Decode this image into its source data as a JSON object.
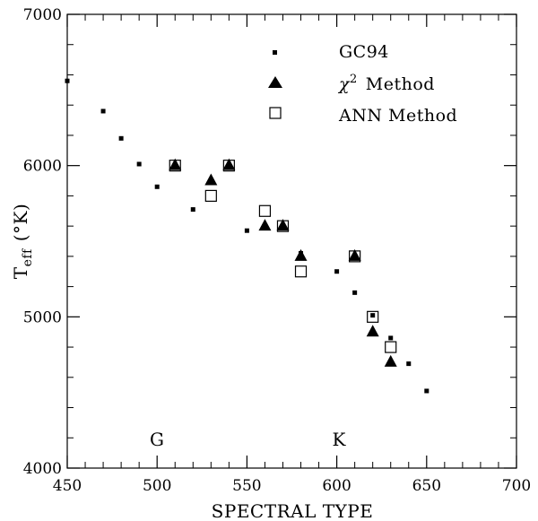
{
  "chart_data": {
    "type": "scatter",
    "xlabel": "SPECTRAL TYPE",
    "ylabel_main": "T",
    "ylabel_sub": "eff",
    "ylabel_unit": "(°K)",
    "xlim": [
      450,
      700
    ],
    "ylim": [
      4000,
      7000
    ],
    "x_ticks": [
      450,
      500,
      550,
      600,
      650,
      700
    ],
    "y_ticks": [
      4000,
      5000,
      6000,
      7000
    ],
    "x_tick_labels": [
      "450",
      "500",
      "550",
      "600",
      "650",
      "700"
    ],
    "y_tick_labels": [
      "4000",
      "5000",
      "6000",
      "7000"
    ],
    "legend": {
      "gc94": "GC94",
      "chi2_symbol": "χ",
      "chi2_sup": "2",
      "chi2_rest": "Method",
      "ann": "ANN Method"
    },
    "annotations": {
      "g": "G",
      "k": "K"
    },
    "series": [
      {
        "name": "GC94",
        "marker": "small-square",
        "points": [
          [
            450,
            6560
          ],
          [
            470,
            6360
          ],
          [
            480,
            6180
          ],
          [
            490,
            6010
          ],
          [
            500,
            5860
          ],
          [
            520,
            5710
          ],
          [
            540,
            6000
          ],
          [
            550,
            5570
          ],
          [
            580,
            5420
          ],
          [
            600,
            5300
          ],
          [
            610,
            5160
          ],
          [
            620,
            5010
          ],
          [
            630,
            4860
          ],
          [
            640,
            4690
          ],
          [
            650,
            4510
          ]
        ]
      },
      {
        "name": "χ2 Method",
        "marker": "filled-triangle",
        "points": [
          [
            510,
            6000
          ],
          [
            530,
            5900
          ],
          [
            540,
            6000
          ],
          [
            560,
            5600
          ],
          [
            570,
            5600
          ],
          [
            580,
            5400
          ],
          [
            610,
            5400
          ],
          [
            620,
            4900
          ],
          [
            630,
            4700
          ]
        ]
      },
      {
        "name": "ANN Method",
        "marker": "open-square",
        "points": [
          [
            510,
            6000
          ],
          [
            530,
            5800
          ],
          [
            540,
            6000
          ],
          [
            560,
            5700
          ],
          [
            570,
            5600
          ],
          [
            580,
            5300
          ],
          [
            610,
            5400
          ],
          [
            620,
            5000
          ],
          [
            630,
            4800
          ]
        ]
      }
    ]
  }
}
